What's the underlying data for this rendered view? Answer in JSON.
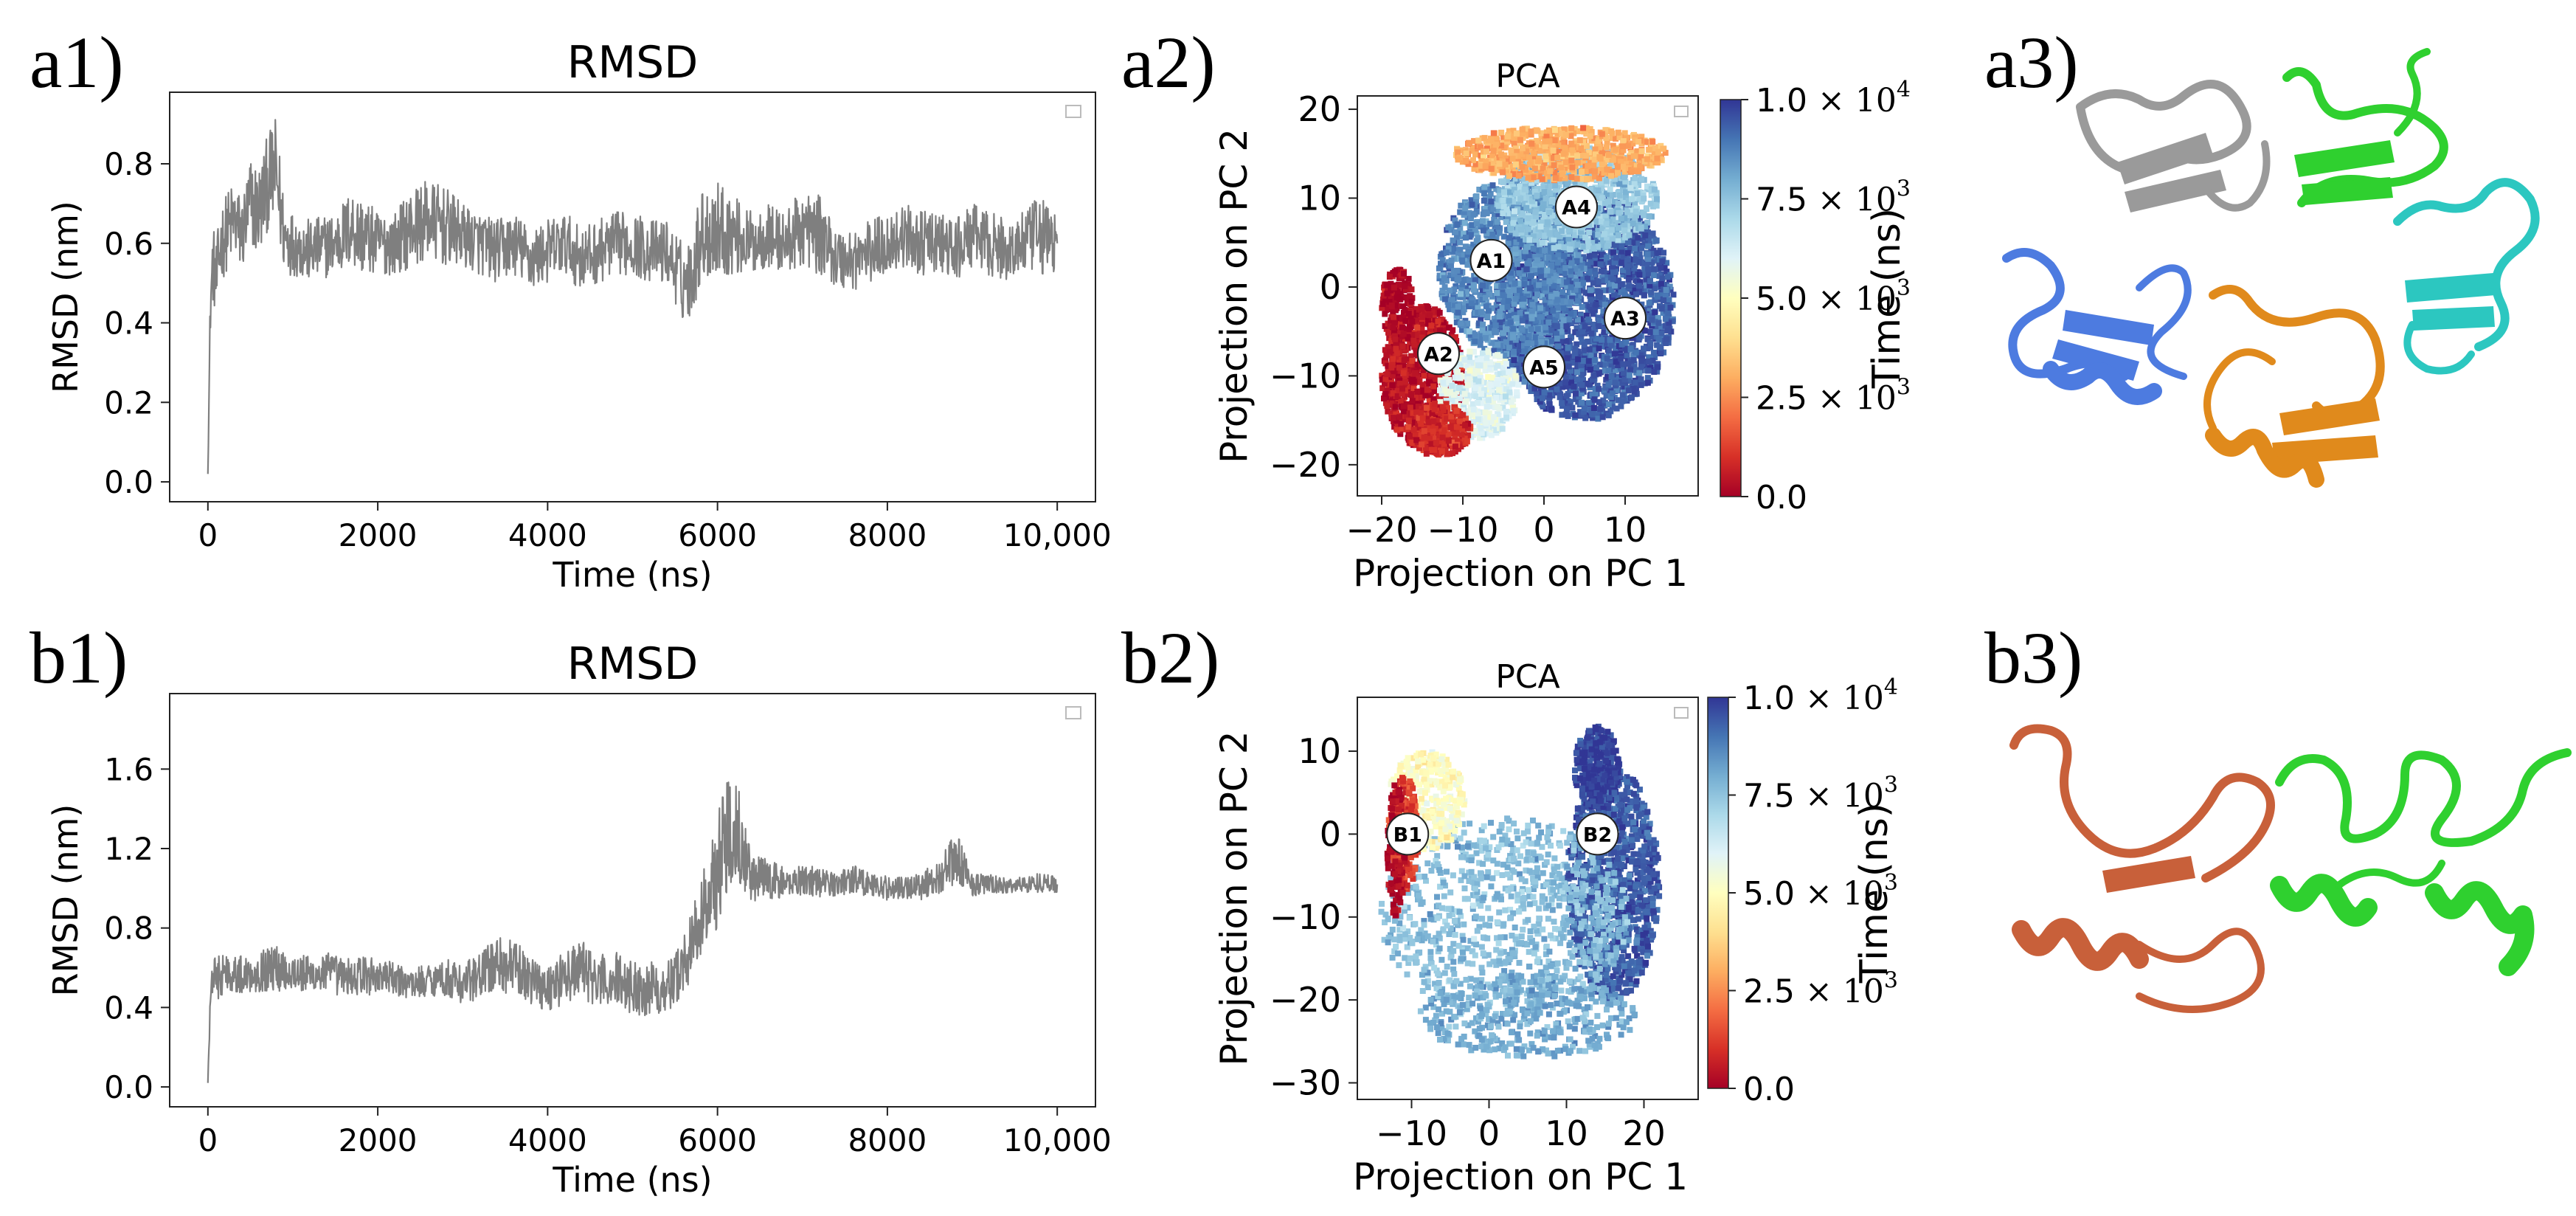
{
  "panel_labels": {
    "a1": "a1)",
    "a2": "a2)",
    "a3": "a3)",
    "b1": "b1)",
    "b2": "b2)",
    "b3": "b3)"
  },
  "colorbar": {
    "label": "Time (ns)",
    "ticks": [
      {
        "value": 0,
        "mant": "0.0",
        "exp": ""
      },
      {
        "value": 2500,
        "mant": "2.5",
        "exp": "3"
      },
      {
        "value": 5000,
        "mant": "5.0",
        "exp": "3"
      },
      {
        "value": 7500,
        "mant": "7.5",
        "exp": "3"
      },
      {
        "value": 10000,
        "mant": "1.0",
        "exp": "4"
      }
    ]
  },
  "structures": {
    "a3": [
      {
        "name": "gray",
        "color": "#9a9a9a"
      },
      {
        "name": "green",
        "color": "#2fd02f"
      },
      {
        "name": "blue",
        "color": "#4d7be0"
      },
      {
        "name": "orange",
        "color": "#e08a1c"
      },
      {
        "name": "cyan",
        "color": "#2cc7c0"
      }
    ],
    "b3": [
      {
        "name": "brown",
        "color": "#c8603a"
      },
      {
        "name": "green",
        "color": "#2fd02f"
      }
    ]
  },
  "chart_data": [
    {
      "id": "a1",
      "type": "line",
      "title": "RMSD",
      "xlabel": "Time (ns)",
      "ylabel": "RMSD (nm)",
      "xlim": [
        -450,
        10450
      ],
      "ylim": [
        -0.05,
        0.98
      ],
      "xticks": [
        0,
        2000,
        4000,
        6000,
        8000,
        10000
      ],
      "xtick_labels": [
        "0",
        "2000",
        "4000",
        "6000",
        "8000",
        "10,000"
      ],
      "yticks": [
        0.0,
        0.2,
        0.4,
        0.6,
        0.8
      ],
      "ytick_labels": [
        "0.0",
        "0.2",
        "0.4",
        "0.6",
        "0.8"
      ],
      "color": "#7f7f7f",
      "series": {
        "x": [
          0,
          30,
          60,
          100,
          150,
          200,
          300,
          400,
          500,
          600,
          700,
          800,
          850,
          900,
          1000,
          1200,
          1500,
          1700,
          1800,
          2000,
          2200,
          2400,
          2600,
          2800,
          3000,
          3200,
          3400,
          3600,
          3800,
          4000,
          4200,
          4400,
          4600,
          4800,
          5000,
          5200,
          5400,
          5600,
          5700,
          5800,
          6000,
          6200,
          6400,
          6600,
          6800,
          7000,
          7200,
          7300,
          7400,
          7600,
          7800,
          8000,
          8200,
          8400,
          8600,
          8800,
          9000,
          9200,
          9400,
          9600,
          9800,
          10000
        ],
        "y": [
          0.02,
          0.45,
          0.55,
          0.5,
          0.6,
          0.62,
          0.66,
          0.62,
          0.7,
          0.68,
          0.75,
          0.78,
          0.7,
          0.62,
          0.6,
          0.58,
          0.6,
          0.64,
          0.62,
          0.6,
          0.6,
          0.64,
          0.66,
          0.64,
          0.62,
          0.6,
          0.58,
          0.6,
          0.56,
          0.58,
          0.6,
          0.56,
          0.58,
          0.6,
          0.6,
          0.58,
          0.58,
          0.5,
          0.52,
          0.62,
          0.64,
          0.62,
          0.6,
          0.62,
          0.6,
          0.64,
          0.62,
          0.6,
          0.56,
          0.56,
          0.58,
          0.6,
          0.62,
          0.6,
          0.6,
          0.58,
          0.62,
          0.6,
          0.58,
          0.6,
          0.62,
          0.6
        ],
        "spread": [
          0,
          0.08,
          0.1,
          0.1,
          0.1,
          0.1,
          0.1,
          0.1,
          0.12,
          0.12,
          0.12,
          0.14,
          0.12,
          0.1,
          0.08,
          0.08,
          0.08,
          0.1,
          0.1,
          0.08,
          0.08,
          0.1,
          0.1,
          0.1,
          0.08,
          0.08,
          0.08,
          0.08,
          0.08,
          0.08,
          0.08,
          0.08,
          0.08,
          0.08,
          0.08,
          0.08,
          0.08,
          0.1,
          0.1,
          0.12,
          0.12,
          0.1,
          0.08,
          0.08,
          0.08,
          0.1,
          0.1,
          0.08,
          0.08,
          0.08,
          0.08,
          0.08,
          0.08,
          0.08,
          0.08,
          0.08,
          0.08,
          0.08,
          0.08,
          0.08,
          0.1,
          0.08
        ]
      }
    },
    {
      "id": "b1",
      "type": "line",
      "title": "RMSD",
      "xlabel": "Time (ns)",
      "ylabel": "RMSD (nm)",
      "xlim": [
        -450,
        10450
      ],
      "ylim": [
        -0.1,
        1.98
      ],
      "xticks": [
        0,
        2000,
        4000,
        6000,
        8000,
        10000
      ],
      "xtick_labels": [
        "0",
        "2000",
        "4000",
        "6000",
        "8000",
        "10,000"
      ],
      "yticks": [
        0.0,
        0.4,
        0.8,
        1.2,
        1.6
      ],
      "ytick_labels": [
        "0.0",
        "0.4",
        "0.8",
        "1.2",
        "1.6"
      ],
      "color": "#7f7f7f",
      "series": {
        "x": [
          0,
          30,
          60,
          100,
          200,
          400,
          600,
          800,
          1000,
          1200,
          1400,
          1600,
          1800,
          2000,
          2200,
          2400,
          2600,
          2800,
          3000,
          3200,
          3400,
          3600,
          3800,
          4000,
          4200,
          4400,
          4600,
          4800,
          5000,
          5200,
          5400,
          5500,
          5600,
          5700,
          5800,
          5900,
          6000,
          6100,
          6200,
          6300,
          6400,
          6600,
          6800,
          7000,
          7200,
          7400,
          7600,
          7800,
          8000,
          8200,
          8400,
          8600,
          8800,
          8900,
          9000,
          9200,
          9400,
          9600,
          9800,
          10000
        ],
        "y": [
          0.02,
          0.45,
          0.55,
          0.55,
          0.58,
          0.56,
          0.58,
          0.6,
          0.58,
          0.56,
          0.58,
          0.55,
          0.56,
          0.56,
          0.54,
          0.52,
          0.54,
          0.55,
          0.52,
          0.56,
          0.62,
          0.6,
          0.54,
          0.5,
          0.55,
          0.6,
          0.52,
          0.55,
          0.5,
          0.5,
          0.5,
          0.55,
          0.62,
          0.72,
          0.85,
          0.95,
          1.1,
          1.25,
          1.35,
          1.2,
          1.05,
          1.05,
          1.02,
          1.05,
          1.03,
          1.02,
          1.05,
          1.02,
          1.0,
          1.0,
          1.02,
          1.05,
          1.15,
          1.1,
          1.02,
          1.02,
          1.01,
          1.02,
          1.03,
          1.02
        ],
        "spread": [
          0,
          0.08,
          0.1,
          0.12,
          0.1,
          0.1,
          0.1,
          0.12,
          0.1,
          0.1,
          0.1,
          0.1,
          0.1,
          0.1,
          0.08,
          0.08,
          0.08,
          0.1,
          0.1,
          0.12,
          0.14,
          0.14,
          0.12,
          0.12,
          0.14,
          0.14,
          0.14,
          0.14,
          0.14,
          0.14,
          0.12,
          0.14,
          0.16,
          0.16,
          0.2,
          0.25,
          0.3,
          0.3,
          0.28,
          0.2,
          0.12,
          0.1,
          0.08,
          0.08,
          0.08,
          0.06,
          0.08,
          0.06,
          0.06,
          0.06,
          0.08,
          0.08,
          0.14,
          0.1,
          0.06,
          0.05,
          0.04,
          0.04,
          0.05,
          0.04
        ]
      }
    },
    {
      "id": "a2",
      "type": "scatter",
      "title": "PCA",
      "xlabel": "Projection on PC 1",
      "ylabel": "Projection on PC 2",
      "xlim": [
        -23,
        19
      ],
      "ylim": [
        -23.5,
        21.5
      ],
      "xticks": [
        -20,
        -10,
        0,
        10
      ],
      "xtick_labels": [
        "−20",
        "−10",
        "0",
        "10"
      ],
      "yticks": [
        -20,
        -10,
        0,
        10,
        20
      ],
      "ytick_labels": [
        "−20",
        "−10",
        "0",
        "10",
        "20"
      ],
      "clusters": [
        {
          "cx": 5,
          "cy": -2,
          "rx": 11,
          "ry": 13,
          "t": 9400,
          "n": 2200
        },
        {
          "cx": -4,
          "cy": 2,
          "rx": 9,
          "ry": 10,
          "t": 8700,
          "n": 1200
        },
        {
          "cx": 4,
          "cy": 10,
          "rx": 10,
          "ry": 6,
          "t": 7400,
          "n": 900
        },
        {
          "cx": 2,
          "cy": 15,
          "rx": 13,
          "ry": 3,
          "t": 3000,
          "n": 700
        },
        {
          "cx": -15,
          "cy": -10,
          "rx": 5,
          "ry": 8,
          "t": 400,
          "n": 900
        },
        {
          "cx": -18,
          "cy": -2,
          "rx": 2,
          "ry": 4,
          "t": 100,
          "n": 150
        },
        {
          "cx": -8,
          "cy": -12,
          "rx": 5,
          "ry": 5,
          "t": 6000,
          "n": 400
        },
        {
          "cx": -13,
          "cy": -16,
          "rx": 4,
          "ry": 3,
          "t": 900,
          "n": 250
        }
      ],
      "annotations": [
        {
          "label": "A1",
          "x": -6.5,
          "y": 3
        },
        {
          "label": "A2",
          "x": -13,
          "y": -7.5
        },
        {
          "label": "A3",
          "x": 10,
          "y": -3.5
        },
        {
          "label": "A4",
          "x": 4,
          "y": 9
        },
        {
          "label": "A5",
          "x": 0,
          "y": -9
        }
      ]
    },
    {
      "id": "b2",
      "type": "scatter",
      "title": "PCA",
      "xlabel": "Projection on PC 1",
      "ylabel": "Projection on PC 2",
      "xlim": [
        -17,
        27
      ],
      "ylim": [
        -32,
        16.5
      ],
      "xticks": [
        -10,
        0,
        10,
        20
      ],
      "xtick_labels": [
        "−10",
        "0",
        "10",
        "20"
      ],
      "yticks": [
        -30,
        -20,
        -10,
        0,
        10
      ],
      "ytick_labels": [
        "−30",
        "−20",
        "−10",
        "0",
        "10"
      ],
      "clusters": [
        {
          "cx": 16,
          "cy": -6,
          "rx": 6,
          "ry": 14,
          "t": 9400,
          "n": 1100
        },
        {
          "cx": 14,
          "cy": 8,
          "rx": 3,
          "ry": 5,
          "t": 9900,
          "n": 300
        },
        {
          "cx": 2,
          "cy": -10,
          "rx": 16,
          "ry": 12,
          "t": 7600,
          "n": 900
        },
        {
          "cx": -8,
          "cy": 4,
          "rx": 5,
          "ry": 6,
          "t": 5000,
          "n": 350
        },
        {
          "cx": -11,
          "cy": 0,
          "rx": 2,
          "ry": 7,
          "t": 1200,
          "n": 200
        },
        {
          "cx": -12,
          "cy": -2,
          "rx": 1.2,
          "ry": 8,
          "t": 100,
          "n": 120
        },
        {
          "cx": 5,
          "cy": -22,
          "rx": 14,
          "ry": 5,
          "t": 8000,
          "n": 400
        }
      ],
      "annotations": [
        {
          "label": "B1",
          "x": -10.5,
          "y": 0
        },
        {
          "label": "B2",
          "x": 14,
          "y": 0
        }
      ]
    }
  ]
}
